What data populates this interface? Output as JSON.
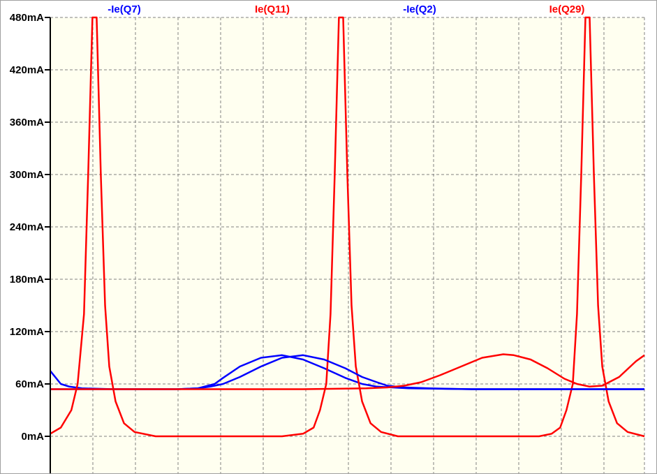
{
  "window": {
    "background": "#ffffff",
    "plot_background": "#fffff0",
    "grid_color": "#808080",
    "axis_color": "#000000"
  },
  "chart_data": {
    "type": "line",
    "title": "",
    "xlabel": "",
    "ylabel": "",
    "y_unit": "mA",
    "ylim": [
      -40,
      480
    ],
    "yticks": [
      0,
      60,
      120,
      180,
      240,
      300,
      360,
      420,
      480
    ],
    "ytick_labels": [
      "0mA",
      "60mA",
      "120mA",
      "180mA",
      "240mA",
      "300mA",
      "360mA",
      "420mA",
      "480mA"
    ],
    "x_ticks_labeled": false,
    "grid": true,
    "legend": "top",
    "series": [
      {
        "name": "-Ie(Q7)",
        "color": "#0000ff",
        "values": [
          [
            0.0,
            75
          ],
          [
            0.05,
            60
          ],
          [
            0.09,
            57
          ],
          [
            0.15,
            55
          ],
          [
            0.3,
            54
          ],
          [
            0.6,
            54
          ],
          [
            0.7,
            55
          ],
          [
            0.78,
            60
          ],
          [
            0.82,
            67
          ],
          [
            0.9,
            80
          ],
          [
            1.0,
            90
          ],
          [
            1.1,
            93
          ],
          [
            1.2,
            88
          ],
          [
            1.3,
            78
          ],
          [
            1.4,
            67
          ],
          [
            1.48,
            60
          ],
          [
            1.55,
            57
          ],
          [
            1.7,
            55
          ],
          [
            2.0,
            54
          ],
          [
            2.3,
            54
          ],
          [
            2.6,
            54
          ],
          [
            2.82,
            54
          ]
        ]
      },
      {
        "name": "Ie(Q11)",
        "color": "#ff0000",
        "values": [
          [
            0.0,
            3
          ],
          [
            0.05,
            10
          ],
          [
            0.1,
            30
          ],
          [
            0.13,
            60
          ],
          [
            0.16,
            140
          ],
          [
            0.18,
            300
          ],
          [
            0.2,
            480
          ],
          [
            0.22,
            480
          ],
          [
            0.24,
            300
          ],
          [
            0.26,
            150
          ],
          [
            0.28,
            80
          ],
          [
            0.31,
            40
          ],
          [
            0.35,
            15
          ],
          [
            0.4,
            5
          ],
          [
            0.5,
            0
          ],
          [
            0.7,
            0
          ],
          [
            0.9,
            0
          ],
          [
            1.1,
            0
          ],
          [
            1.2,
            3
          ],
          [
            1.25,
            10
          ],
          [
            1.28,
            30
          ],
          [
            1.31,
            60
          ],
          [
            1.33,
            140
          ],
          [
            1.35,
            300
          ],
          [
            1.37,
            480
          ],
          [
            1.39,
            480
          ],
          [
            1.41,
            300
          ],
          [
            1.43,
            150
          ],
          [
            1.45,
            80
          ],
          [
            1.48,
            40
          ],
          [
            1.52,
            15
          ],
          [
            1.57,
            5
          ],
          [
            1.65,
            0
          ],
          [
            1.8,
            0
          ],
          [
            2.0,
            0
          ],
          [
            2.2,
            0
          ],
          [
            2.32,
            0
          ],
          [
            2.38,
            3
          ],
          [
            2.42,
            10
          ],
          [
            2.45,
            30
          ],
          [
            2.48,
            60
          ],
          [
            2.5,
            140
          ],
          [
            2.52,
            300
          ],
          [
            2.54,
            480
          ],
          [
            2.56,
            480
          ],
          [
            2.58,
            300
          ],
          [
            2.6,
            150
          ],
          [
            2.62,
            80
          ],
          [
            2.65,
            40
          ],
          [
            2.69,
            15
          ],
          [
            2.74,
            5
          ],
          [
            2.82,
            0
          ]
        ]
      },
      {
        "name": "-Ie(Q2)",
        "color": "#0000ff",
        "values": [
          [
            0.0,
            54
          ],
          [
            0.3,
            54
          ],
          [
            0.6,
            54
          ],
          [
            0.7,
            55
          ],
          [
            0.76,
            57
          ],
          [
            0.82,
            60
          ],
          [
            0.9,
            68
          ],
          [
            1.0,
            80
          ],
          [
            1.1,
            90
          ],
          [
            1.2,
            93
          ],
          [
            1.3,
            88
          ],
          [
            1.4,
            78
          ],
          [
            1.48,
            68
          ],
          [
            1.55,
            62
          ],
          [
            1.6,
            58
          ],
          [
            1.68,
            56
          ],
          [
            1.8,
            55
          ],
          [
            2.0,
            54
          ],
          [
            2.3,
            54
          ],
          [
            2.6,
            54
          ],
          [
            2.82,
            54
          ]
        ]
      },
      {
        "name": "Ie(Q29)",
        "color": "#ff0000",
        "values": [
          [
            0.0,
            54
          ],
          [
            0.3,
            54
          ],
          [
            0.6,
            54
          ],
          [
            0.9,
            54
          ],
          [
            1.2,
            54
          ],
          [
            1.5,
            55
          ],
          [
            1.6,
            56
          ],
          [
            1.68,
            58
          ],
          [
            1.76,
            62
          ],
          [
            1.85,
            70
          ],
          [
            1.95,
            80
          ],
          [
            2.05,
            90
          ],
          [
            2.15,
            94
          ],
          [
            2.2,
            93
          ],
          [
            2.28,
            88
          ],
          [
            2.36,
            78
          ],
          [
            2.44,
            66
          ],
          [
            2.5,
            60
          ],
          [
            2.56,
            57
          ],
          [
            2.62,
            58
          ],
          [
            2.7,
            68
          ],
          [
            2.78,
            86
          ],
          [
            2.82,
            93
          ]
        ]
      }
    ]
  }
}
